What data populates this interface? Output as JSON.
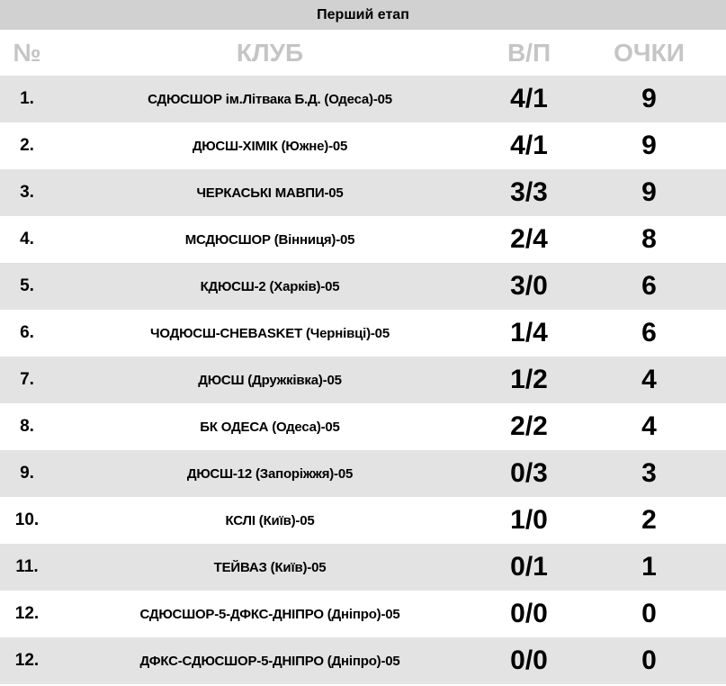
{
  "title": "Перший етап",
  "colors": {
    "page_bg": "#ffffff",
    "title_bar_bg": "#d1d1d1",
    "row_stripe_bg": "#e3e3e3",
    "header_text": "#c5c5c5",
    "text_color": "#000000"
  },
  "table": {
    "columns": [
      {
        "key": "num",
        "label": "№"
      },
      {
        "key": "club",
        "label": "КЛУБ"
      },
      {
        "key": "wl",
        "label": "В/П"
      },
      {
        "key": "points",
        "label": "ОЧКИ"
      }
    ],
    "rows": [
      {
        "num": "1.",
        "club": "СДЮСШОР ім.Літвака Б.Д. (Одеса)-05",
        "wl": "4/1",
        "points": "9"
      },
      {
        "num": "2.",
        "club": "ДЮСШ-ХІМІК (Южне)-05",
        "wl": "4/1",
        "points": "9"
      },
      {
        "num": "3.",
        "club": "ЧЕРКАСЬКІ МАВПИ-05",
        "wl": "3/3",
        "points": "9"
      },
      {
        "num": "4.",
        "club": "МСДЮСШОР (Вінниця)-05",
        "wl": "2/4",
        "points": "8"
      },
      {
        "num": "5.",
        "club": "КДЮСШ-2 (Харків)-05",
        "wl": "3/0",
        "points": "6"
      },
      {
        "num": "6.",
        "club": "ЧОДЮСШ-CHEBASKET (Чернівці)-05",
        "wl": "1/4",
        "points": "6"
      },
      {
        "num": "7.",
        "club": "ДЮСШ (Дружківка)-05",
        "wl": "1/2",
        "points": "4"
      },
      {
        "num": "8.",
        "club": "БК ОДЕСА (Одеса)-05",
        "wl": "2/2",
        "points": "4"
      },
      {
        "num": "9.",
        "club": "ДЮСШ-12 (Запоріжжя)-05",
        "wl": "0/3",
        "points": "3"
      },
      {
        "num": "10.",
        "club": "КСЛІ (Київ)-05",
        "wl": "1/0",
        "points": "2"
      },
      {
        "num": "11.",
        "club": "ТЕЙВАЗ (Київ)-05",
        "wl": "0/1",
        "points": "1"
      },
      {
        "num": "12.",
        "club": "СДЮСШОР-5-ДФКС-ДНІПРО (Дніпро)-05",
        "wl": "0/0",
        "points": "0"
      },
      {
        "num": "12.",
        "club": "ДФКС-СДЮСШОР-5-ДНІПРО (Дніпро)-05",
        "wl": "0/0",
        "points": "0"
      }
    ]
  }
}
